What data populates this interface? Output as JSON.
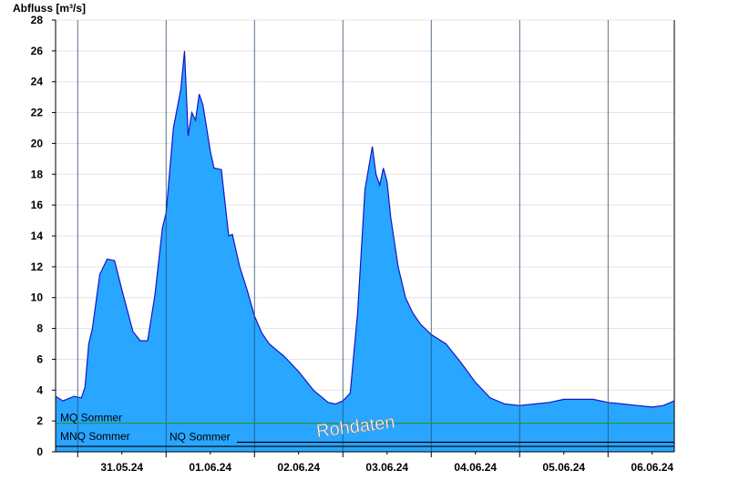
{
  "chart_data": {
    "type": "area",
    "ylabel": "Abfluss [m³/s]",
    "ylim": [
      0,
      28
    ],
    "yticks": [
      0,
      2,
      4,
      6,
      8,
      10,
      12,
      14,
      16,
      18,
      20,
      22,
      24,
      26,
      28
    ],
    "grid": true,
    "x_start": "2024-05-30T18:00",
    "x_end": "2024-06-06T18:00",
    "day_separators": [
      "31.05.24",
      "01.06.24",
      "02.06.24",
      "03.06.24",
      "04.06.24",
      "05.06.24",
      "06.06.24"
    ],
    "xtick_labels": [
      "31.05.24",
      "01.06.24",
      "02.06.24",
      "03.06.24",
      "04.06.24",
      "05.06.24",
      "06.06.24"
    ],
    "series": [
      {
        "color": "#29a6ff",
        "line_color": "#1414c8",
        "x": [
          "2024-05-30T18:00",
          "2024-05-30T20:00",
          "2024-05-30T23:00",
          "2024-05-31T01:00",
          "2024-05-31T02:00",
          "2024-05-31T03:00",
          "2024-05-31T04:00",
          "2024-05-31T06:00",
          "2024-05-31T08:00",
          "2024-05-31T10:00",
          "2024-05-31T12:00",
          "2024-05-31T15:00",
          "2024-05-31T17:00",
          "2024-05-31T19:00",
          "2024-05-31T21:00",
          "2024-05-31T23:00",
          "2024-06-01T00:00",
          "2024-06-01T02:00",
          "2024-06-01T04:00",
          "2024-06-01T05:00",
          "2024-06-01T06:00",
          "2024-06-01T07:00",
          "2024-06-01T08:00",
          "2024-06-01T09:00",
          "2024-06-01T10:00",
          "2024-06-01T12:00",
          "2024-06-01T13:00",
          "2024-06-01T15:00",
          "2024-06-01T17:00",
          "2024-06-01T18:00",
          "2024-06-01T20:00",
          "2024-06-01T22:00",
          "2024-06-02T00:00",
          "2024-06-02T02:00",
          "2024-06-02T04:00",
          "2024-06-02T08:00",
          "2024-06-02T12:00",
          "2024-06-02T16:00",
          "2024-06-02T20:00",
          "2024-06-02T22:00",
          "2024-06-03T00:00",
          "2024-06-03T02:00",
          "2024-06-03T04:00",
          "2024-06-03T06:00",
          "2024-06-03T08:00",
          "2024-06-03T09:00",
          "2024-06-03T10:00",
          "2024-06-03T11:00",
          "2024-06-03T12:00",
          "2024-06-03T13:00",
          "2024-06-03T15:00",
          "2024-06-03T17:00",
          "2024-06-03T19:00",
          "2024-06-03T21:00",
          "2024-06-04T00:00",
          "2024-06-04T04:00",
          "2024-06-04T08:00",
          "2024-06-04T12:00",
          "2024-06-04T16:00",
          "2024-06-04T20:00",
          "2024-06-05T00:00",
          "2024-06-05T04:00",
          "2024-06-05T08:00",
          "2024-06-05T12:00",
          "2024-06-05T16:00",
          "2024-06-05T20:00",
          "2024-06-06T00:00",
          "2024-06-06T04:00",
          "2024-06-06T08:00",
          "2024-06-06T12:00",
          "2024-06-06T15:00",
          "2024-06-06T18:00"
        ],
        "values": [
          3.6,
          3.3,
          3.6,
          3.5,
          4.2,
          7.0,
          8.0,
          11.5,
          12.5,
          12.4,
          10.5,
          7.8,
          7.2,
          7.2,
          10.2,
          14.5,
          15.5,
          21.0,
          23.5,
          26.0,
          20.5,
          22.0,
          21.5,
          23.2,
          22.5,
          19.5,
          18.4,
          18.3,
          14.0,
          14.1,
          12.0,
          10.5,
          8.8,
          7.7,
          7.0,
          6.2,
          5.2,
          4.0,
          3.2,
          3.1,
          3.3,
          3.8,
          9.0,
          17.0,
          19.8,
          18.0,
          17.3,
          18.4,
          17.5,
          15.2,
          12.0,
          10.0,
          9.0,
          8.3,
          7.6,
          7.0,
          5.8,
          4.5,
          3.5,
          3.1,
          3.0,
          3.1,
          3.2,
          3.4,
          3.4,
          3.4,
          3.2,
          3.1,
          3.0,
          2.9,
          3.0,
          3.3
        ]
      }
    ],
    "reference_lines": [
      {
        "label": "MQ Sommer",
        "value": 1.85,
        "color": "#1e9632"
      },
      {
        "label": "MNQ Sommer",
        "value": 0.35,
        "color": "#000000"
      },
      {
        "label": "NQ Sommer",
        "value": 0.5,
        "color": "#000000"
      }
    ],
    "annotations": [
      "Rohdaten"
    ]
  }
}
